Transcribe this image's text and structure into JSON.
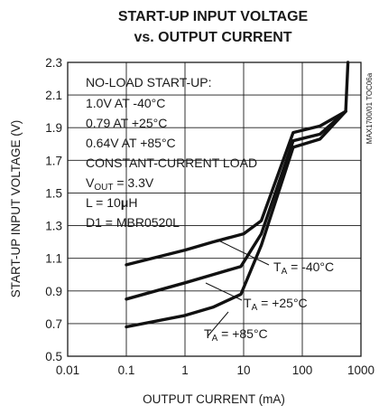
{
  "chart_data": {
    "type": "line",
    "title_line1": "START-UP INPUT VOLTAGE",
    "title_line2": "vs. OUTPUT CURRENT",
    "xlabel": "OUTPUT CURRENT (mA)",
    "ylabel": "START-UP INPUT VOLTAGE (V)",
    "x_scale": "log",
    "xlim": [
      0.01,
      1000
    ],
    "ylim": [
      0.5,
      2.3
    ],
    "x_ticks": [
      "0.01",
      "0.1",
      "1",
      "10",
      "100",
      "1000"
    ],
    "y_ticks": [
      "0.5",
      "0.7",
      "0.9",
      "1.1",
      "1.3",
      "1.5",
      "1.7",
      "1.9",
      "2.1",
      "2.3"
    ],
    "grid": true,
    "side_label": "MAX1700/01 TOC06a",
    "annotations": {
      "line1": "NO-LOAD START-UP:",
      "line2": "1.0V AT -40°C",
      "line3": "0.79 AT +25°C",
      "line4": "0.64V AT +85°C",
      "line5": "CONSTANT-CURRENT LOAD",
      "vout_main": "V",
      "vout_sub": "OUT",
      "vout_val": " = 3.3V",
      "l_prefix": "L = 10",
      "l_mu": "μ",
      "l_suffix": "H",
      "d1": "D1 = MBR0520L"
    },
    "series": [
      {
        "label_main": "T",
        "label_sub": "A",
        "label_val": " = -40°C",
        "points": [
          [
            0.1,
            1.06
          ],
          [
            1,
            1.15
          ],
          [
            3,
            1.2
          ],
          [
            10,
            1.25
          ],
          [
            20,
            1.33
          ],
          [
            70,
            1.87
          ],
          [
            200,
            1.91
          ],
          [
            550,
            2.0
          ],
          [
            600,
            2.3
          ]
        ]
      },
      {
        "label_main": "T",
        "label_sub": "A",
        "label_val": " = +25°C",
        "points": [
          [
            0.1,
            0.85
          ],
          [
            1,
            0.95
          ],
          [
            3,
            1.0
          ],
          [
            9,
            1.05
          ],
          [
            20,
            1.25
          ],
          [
            70,
            1.82
          ],
          [
            200,
            1.86
          ],
          [
            550,
            2.0
          ]
        ]
      },
      {
        "label_main": "T",
        "label_sub": "A",
        "label_val": " = +85°C",
        "points": [
          [
            0.1,
            0.68
          ],
          [
            1,
            0.75
          ],
          [
            3,
            0.8
          ],
          [
            9,
            0.88
          ],
          [
            20,
            1.18
          ],
          [
            70,
            1.78
          ],
          [
            200,
            1.83
          ],
          [
            550,
            2.0
          ]
        ]
      }
    ]
  }
}
